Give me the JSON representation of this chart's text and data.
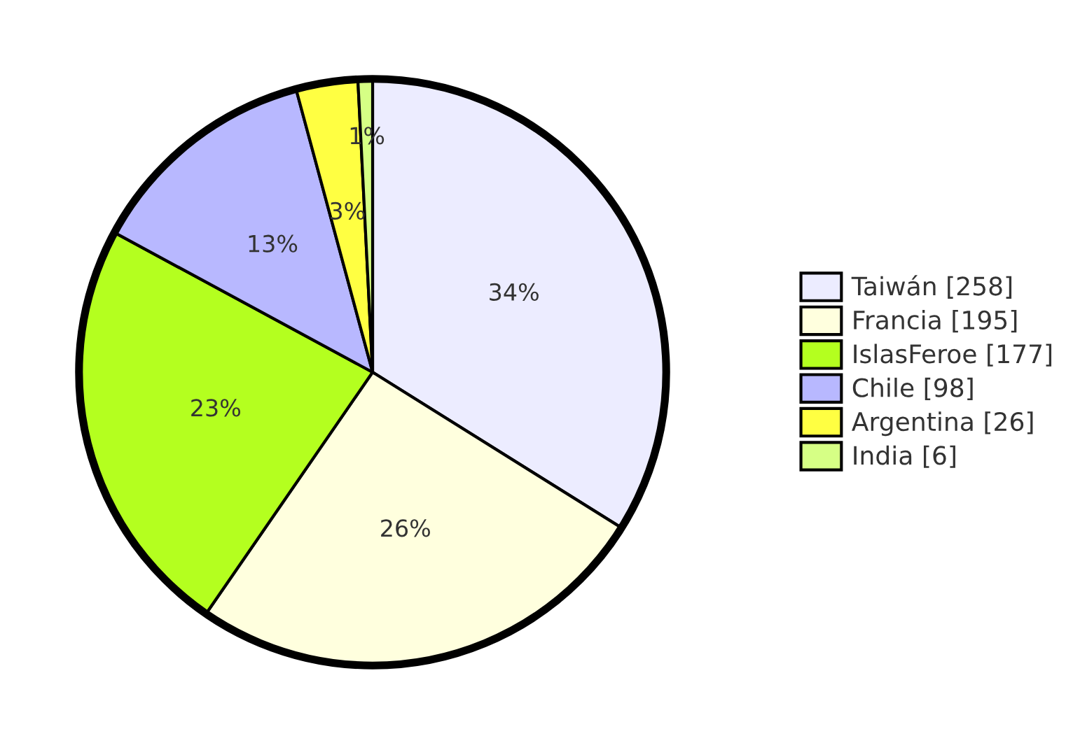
{
  "chart_data": {
    "type": "pie",
    "categories": [
      "Taiwán [258]",
      "Francia [195]",
      "IslasFeroe [177]",
      "Chile [98]",
      "Argentina [26]",
      "India [6]"
    ],
    "values": [
      33.9,
      25.7,
      23.3,
      12.9,
      3.4,
      0.8
    ],
    "colors": [
      "#ececff",
      "#ffffde",
      "#b4ff1f",
      "#b8b8ff",
      "#ffff42",
      "#d6ff85"
    ],
    "value_labels": [
      "34%",
      "26%",
      "23%",
      "13%",
      "3%",
      "1%"
    ],
    "legend": "right"
  }
}
